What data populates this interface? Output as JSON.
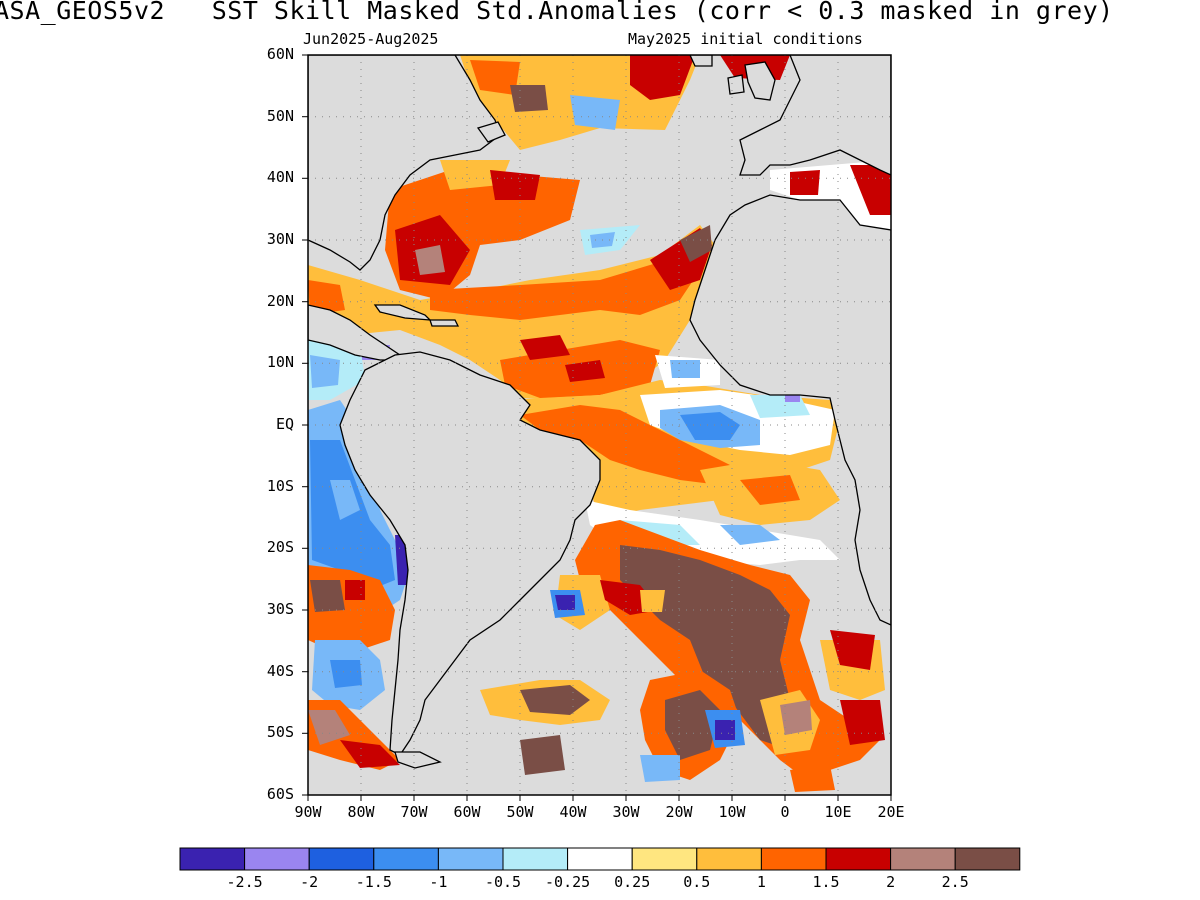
{
  "header": {
    "title": "ASA_GEOS5v2   SST Skill Masked Std.Anomalies (corr < 0.3 masked in grey)",
    "period": "Jun2025-Aug2025",
    "init": "May2025 initial conditions"
  },
  "map": {
    "lat_labels": [
      "60N",
      "50N",
      "40N",
      "30N",
      "20N",
      "10N",
      "EQ",
      "10S",
      "20S",
      "30S",
      "40S",
      "50S",
      "60S"
    ],
    "lon_labels": [
      "90W",
      "80W",
      "70W",
      "60W",
      "50W",
      "40W",
      "30W",
      "20W",
      "10W",
      "0",
      "10E",
      "20E"
    ],
    "lat_range": [
      -60,
      60
    ],
    "lon_range": [
      -90,
      20
    ],
    "mask_color": "#dcdcdc",
    "land_color": "#dcdcdc"
  },
  "colorbar": {
    "colors": [
      "#3a22b0",
      "#9a85f0",
      "#1e60e0",
      "#3c8ef0",
      "#78b8f8",
      "#b4ecf8",
      "#ffffff",
      "#ffe680",
      "#ffbe3c",
      "#ff6400",
      "#c80000",
      "#b4827a",
      "#7a4e46"
    ],
    "labels": [
      "-2.5",
      "-2",
      "-1.5",
      "-1",
      "-0.5",
      "-0.25",
      "0.25",
      "0.5",
      "1",
      "1.5",
      "2",
      "2.5"
    ]
  }
}
